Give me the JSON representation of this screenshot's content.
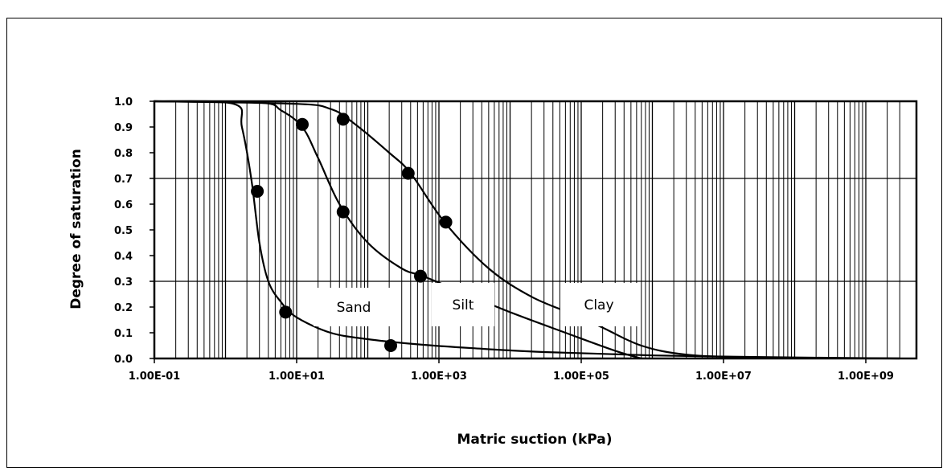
{
  "chart_data": {
    "type": "line",
    "xlabel": "Matric suction (kPa)",
    "ylabel": "Degree of saturation",
    "x_scale": "log",
    "xlim": [
      0.1,
      3000000000.0
    ],
    "ylim": [
      0,
      1.0
    ],
    "x_ticks": [
      "1.00E-01",
      "1.00E+01",
      "1.00E+03",
      "1.00E+05",
      "1.00E+07",
      "1.00E+09"
    ],
    "y_ticks": [
      "0.0",
      "0.1",
      "0.2",
      "0.3",
      "0.4",
      "0.5",
      "0.6",
      "0.7",
      "0.8",
      "0.9",
      "1.0"
    ],
    "grid": "major y at 0.3 and 0.7; vertical lines at every log minor step",
    "series": [
      {
        "name": "Sand",
        "curve": [
          [
            0.1,
            1.0
          ],
          [
            1.3,
            0.99
          ],
          [
            1.7,
            0.9
          ],
          [
            2.3,
            0.7
          ],
          [
            3.0,
            0.45
          ],
          [
            4.0,
            0.3
          ],
          [
            6.0,
            0.22
          ],
          [
            10,
            0.16
          ],
          [
            30,
            0.1
          ],
          [
            100,
            0.075
          ],
          [
            500,
            0.055
          ],
          [
            3000,
            0.04
          ],
          [
            30000,
            0.025
          ],
          [
            1000000,
            0.012
          ],
          [
            100000000.0,
            0.004
          ],
          [
            3000000000.0,
            0.0
          ]
        ],
        "markers": [
          [
            2.8,
            0.65
          ],
          [
            7,
            0.18
          ],
          [
            210,
            0.05
          ]
        ]
      },
      {
        "name": "Silt",
        "curve": [
          [
            0.1,
            1.0
          ],
          [
            3,
            0.995
          ],
          [
            6,
            0.965
          ],
          [
            12,
            0.9
          ],
          [
            20,
            0.78
          ],
          [
            40,
            0.6
          ],
          [
            100,
            0.45
          ],
          [
            300,
            0.35
          ],
          [
            600,
            0.32
          ],
          [
            2000,
            0.26
          ],
          [
            10000,
            0.18
          ],
          [
            60000,
            0.1
          ],
          [
            300000,
            0.03
          ],
          [
            700000,
            0.0
          ]
        ],
        "markers": [
          [
            12,
            0.91
          ],
          [
            45,
            0.57
          ],
          [
            550,
            0.32
          ]
        ]
      },
      {
        "name": "Clay",
        "curve": [
          [
            0.1,
            1.0
          ],
          [
            10,
            0.99
          ],
          [
            30,
            0.97
          ],
          [
            60,
            0.92
          ],
          [
            200,
            0.8
          ],
          [
            400,
            0.72
          ],
          [
            1200,
            0.53
          ],
          [
            5000,
            0.35
          ],
          [
            20000,
            0.24
          ],
          [
            80000,
            0.17
          ],
          [
            200000,
            0.12
          ],
          [
            700000,
            0.05
          ],
          [
            3000000,
            0.015
          ],
          [
            30000000.0,
            0.004
          ],
          [
            3000000000.0,
            0.0
          ]
        ],
        "markers": [
          [
            45,
            0.93
          ],
          [
            370,
            0.72
          ],
          [
            1250,
            0.53
          ]
        ]
      }
    ],
    "annotations": [
      "Sand",
      "Silt",
      "Clay"
    ]
  }
}
